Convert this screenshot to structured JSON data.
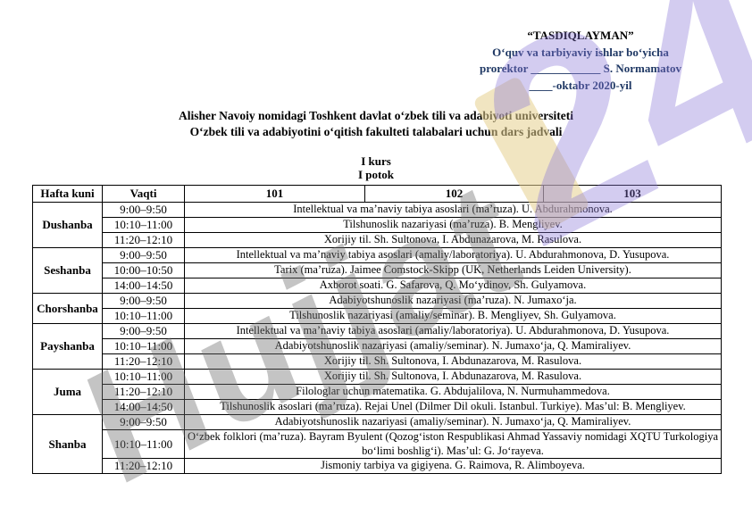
{
  "approval": {
    "title": "“TASDIQLAYMAN”",
    "line2": "Oʻquv va tarbiyaviy ishlar boʻyicha",
    "line3": "prorektor ____________ S. Normamatov",
    "line4": "____-oktabr 2020-yil",
    "accent_color": "#1f3864"
  },
  "heading": {
    "line1": "Alisher Navoiy nomidagi Toshkent davlat oʻzbek tili va adabiyoti universiteti",
    "line2": "Oʻzbek tili va adabiyotini oʻqitish fakulteti talabalari uchun dars jadvali",
    "course": "I kurs",
    "stream": "I potok"
  },
  "table": {
    "headers": [
      "Hafta kuni",
      "Vaqti",
      "101",
      "102",
      "103"
    ],
    "days": [
      {
        "day": "Dushanba",
        "rows": [
          {
            "time": "9:00–9:50",
            "lesson": "Intellektual va ma’naviy tabiya asoslari (ma’ruza). U. Abdurahmonova."
          },
          {
            "time": "10:10–11:00",
            "lesson": "Tilshunoslik nazariyasi (ma’ruza). B. Mengliyev."
          },
          {
            "time": "11:20–12:10",
            "lesson": "Xorijiy til. Sh. Sultonova, I. Abdunazarova, M. Rasulova."
          }
        ]
      },
      {
        "day": "Seshanba",
        "rows": [
          {
            "time": "9:00–9:50",
            "lesson": "Intellektual va ma’naviy tabiya asoslari (amaliy/laboratoriya). U. Abdurahmonova, D. Yusupova."
          },
          {
            "time": "10:00–10:50",
            "lesson": "Tarix (ma’ruza). Jaimee Comstock-Skipp (UK, Netherlands Leiden University)."
          },
          {
            "time": "14:00–14:50",
            "lesson": "Axborot soati. G. Safarova, Q. Moʻydinov, Sh. Gulyamova."
          }
        ]
      },
      {
        "day": "Chorshanba",
        "rows": [
          {
            "time": "9:00–9:50",
            "lesson": "Adabiyotshunoslik nazariyasi (ma’ruza). N. Jumaxoʻja."
          },
          {
            "time": "10:10–11:00",
            "lesson": "Tilshunoslik nazariyasi (amaliy/seminar). B. Mengliyev, Sh. Gulyamova."
          }
        ]
      },
      {
        "day": "Payshanba",
        "rows": [
          {
            "time": "9:00–9:50",
            "lesson": "Intellektual va ma’naviy tabiya asoslari (amaliy/laboratoriya). U. Abdurahmonova, D. Yusupova."
          },
          {
            "time": "10:10–11:00",
            "lesson": "Adabiyotshunoslik nazariyasi (amaliy/seminar). N. Jumaxoʻja, Q. Mamiraliyev."
          },
          {
            "time": "11:20–12:10",
            "lesson": "Xorijiy til. Sh. Sultonova, I. Abdunazarova, M. Rasulova."
          }
        ]
      },
      {
        "day": "Juma",
        "rows": [
          {
            "time": "10:10–11:00",
            "lesson": "Xorijiy til. Sh. Sultonova, I. Abdunazarova, M. Rasulova."
          },
          {
            "time": "11:20–12:10",
            "lesson": "Filologlar uchun matematika. G. Abdujalilova, N. Nurmuhammedova."
          },
          {
            "time": "14:00–14:50",
            "lesson": "Tilshunoslik asoslari (ma’ruza). Rejai Unel (Dilmer Dil okuli. Istanbul. Turkiye). Mas’ul: B. Mengliyev."
          }
        ]
      },
      {
        "day": "Shanba",
        "rows": [
          {
            "time": "9:00–9:50",
            "lesson": "Adabiyotshunoslik nazariyasi (amaliy/seminar). N. Jumaxoʻja, Q. Mamiraliyev."
          },
          {
            "time": "10:10–11:00",
            "lesson": "Oʻzbek folklori (ma’ruza). Bayram Byulent (Qozogʻiston Respublikasi Ahmad Yassaviy nomidagi XQTU Turkologiya boʻlimi boshligʻi). Mas’ul: G. Joʻrayeva."
          },
          {
            "time": "11:20–12:10",
            "lesson": "Jismoniy tarbiya va gigiyena. G. Raimova, R. Alimboyeva."
          }
        ]
      }
    ]
  },
  "watermark": {
    "word": "Hujjat",
    "number": "24",
    "gray_color": "#6e6e6e",
    "purple_color": "#8875d8",
    "yellow_color": "#e6cf8e"
  }
}
